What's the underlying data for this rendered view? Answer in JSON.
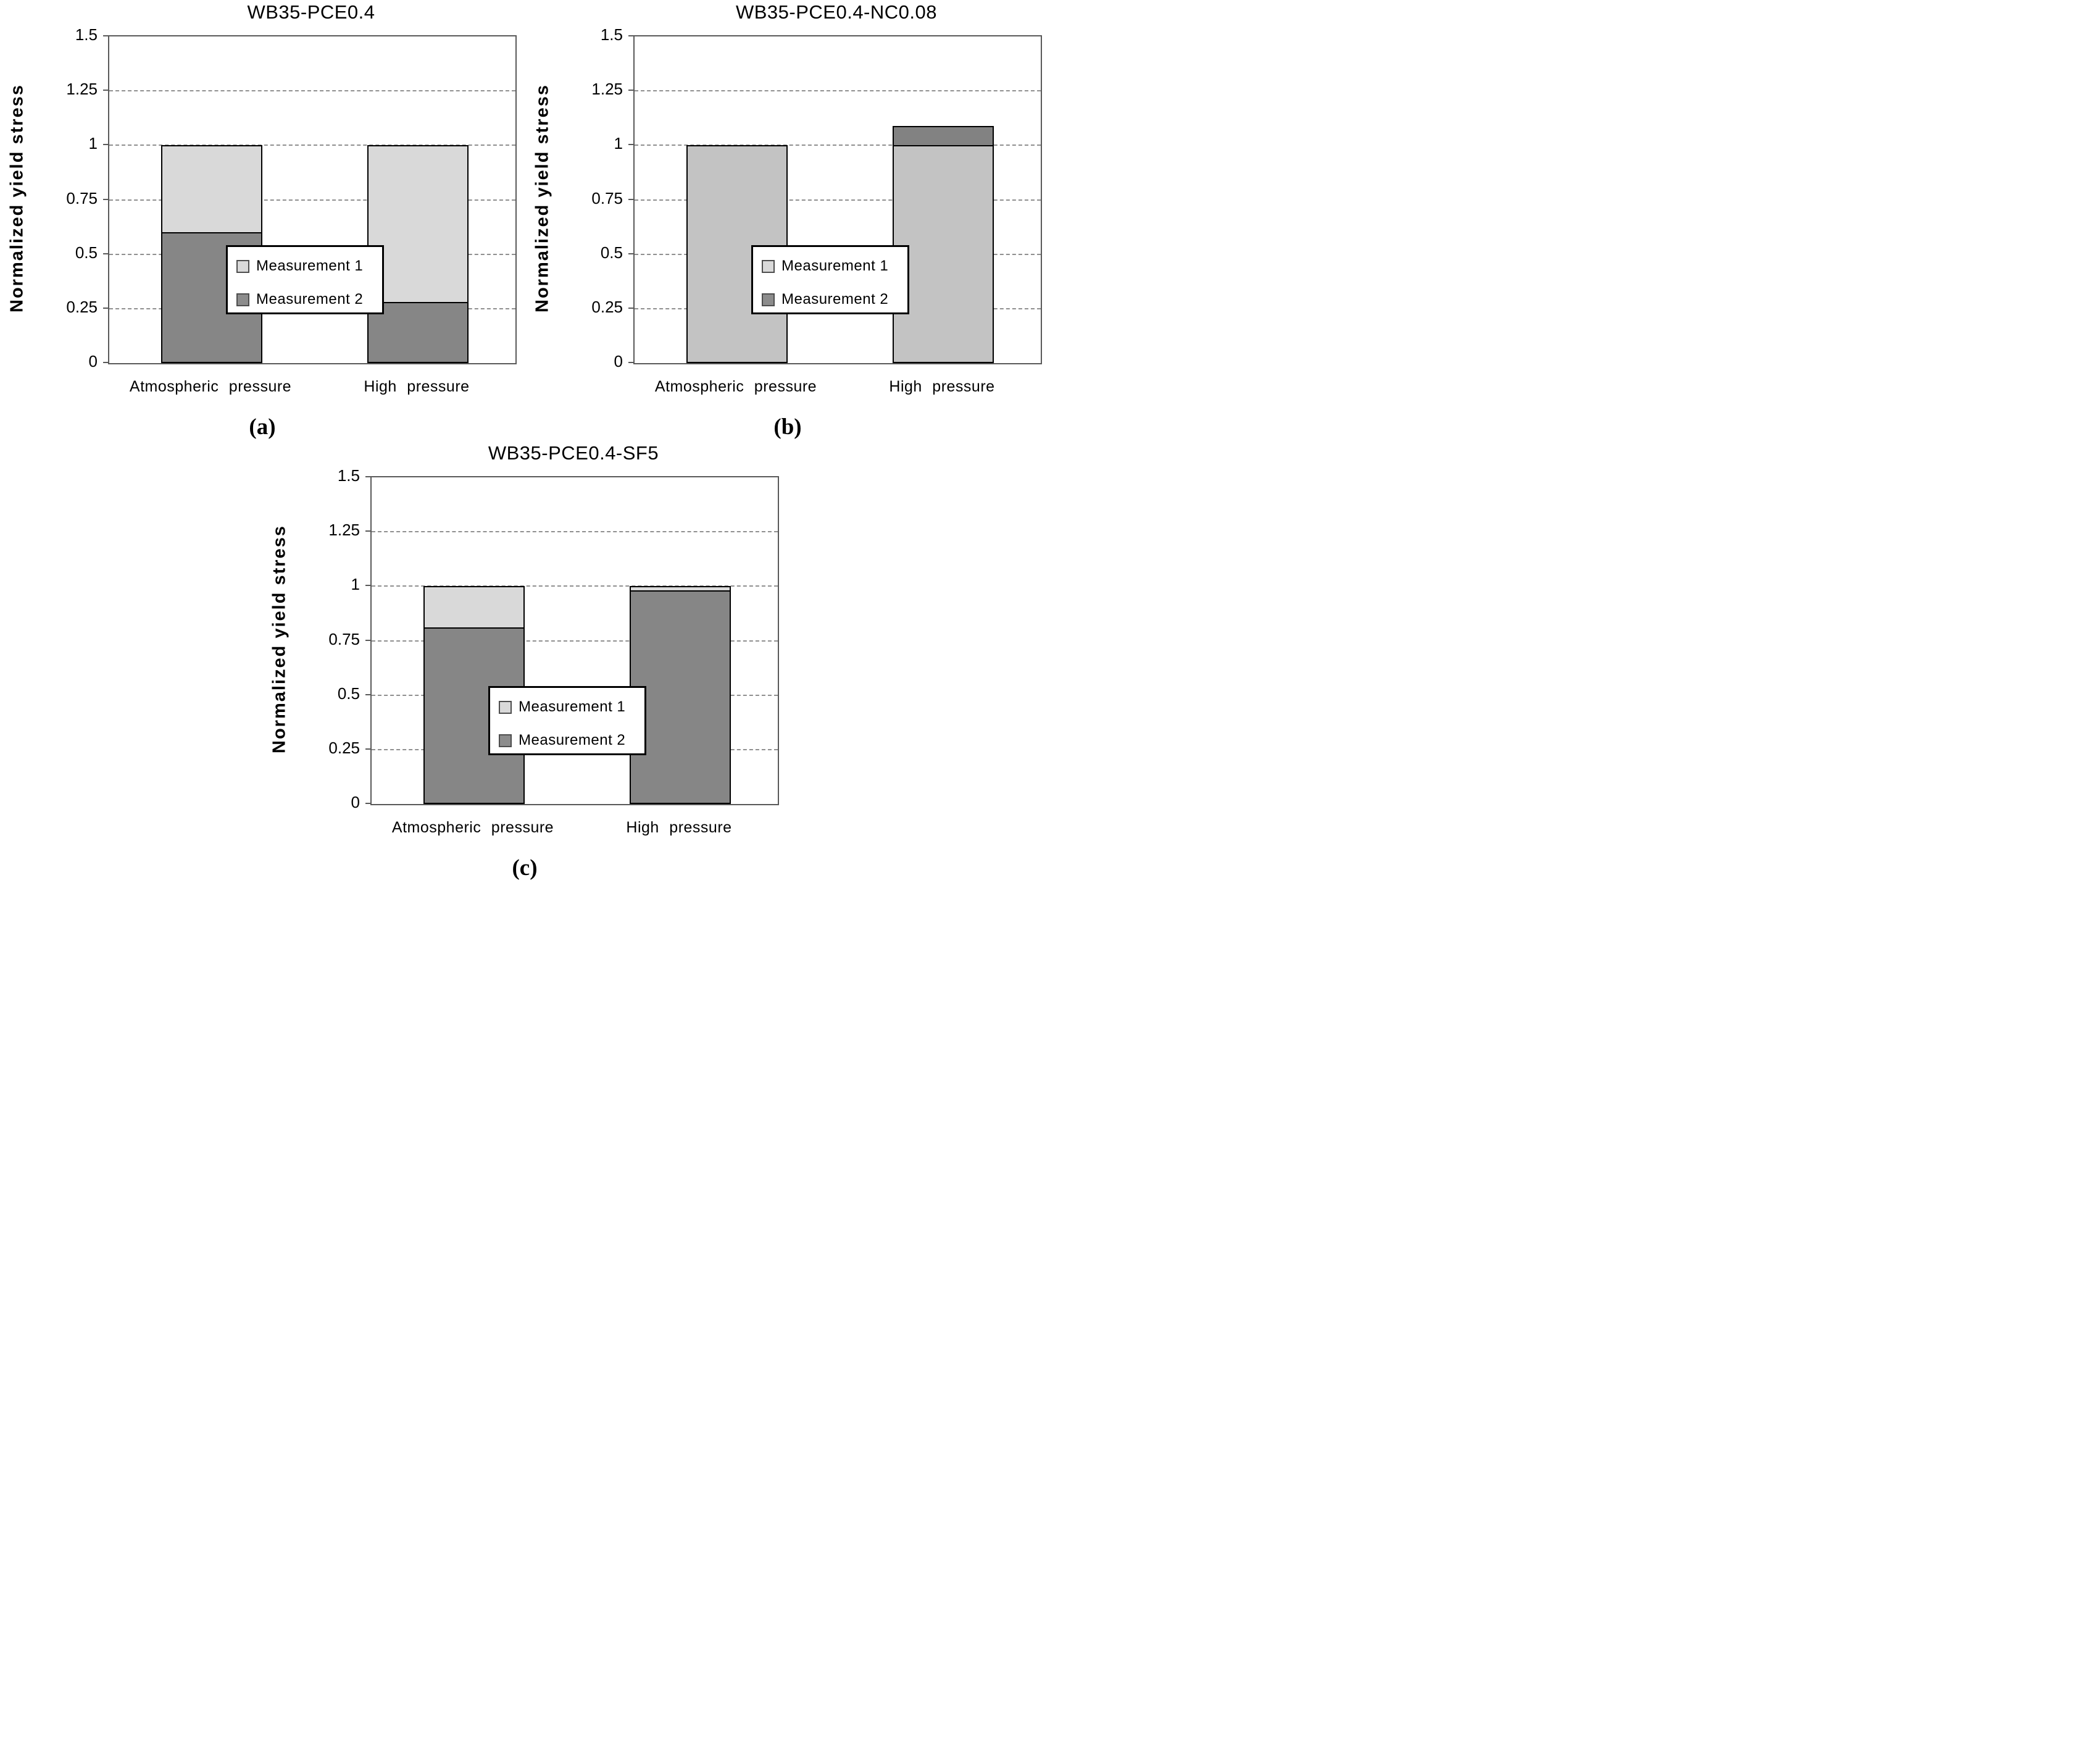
{
  "figure": {
    "background": "#ffffff",
    "style": {
      "plot_border_color": "#595959",
      "gridline_color": "#8f8f8f",
      "bar_border_color": "#000000",
      "legend_border_color": "#000000",
      "legend_background": "#ffffff",
      "text_color": "#000000"
    }
  },
  "chart_data": [
    {
      "panel": "(a)",
      "type": "bar",
      "bar_mode": "overlapped",
      "title": "WB35-PCE0.4",
      "ylabel": "Normalized yield stress",
      "xlabel": "",
      "ylim": [
        0,
        1.5
      ],
      "yticks": [
        0,
        0.25,
        0.5,
        0.75,
        1,
        1.25,
        1.5
      ],
      "ytick_labels": [
        "0",
        "0.25",
        "0.5",
        "0.75",
        "1",
        "1.25",
        "1.5"
      ],
      "grid": "horizontal-dashed",
      "legend_position": "inside-lower-center",
      "categories": [
        "Atmospheric pressure",
        "High pressure"
      ],
      "series": [
        {
          "name": "Measurement 1",
          "values": [
            1.0,
            1.0
          ],
          "color": "#d9d9d9",
          "swatch_color": "#d9d9d9"
        },
        {
          "name": "Measurement 2",
          "values": [
            0.6,
            0.28
          ],
          "color": "#868686",
          "swatch_color": "#8c8c8c"
        }
      ]
    },
    {
      "panel": "(b)",
      "type": "bar",
      "bar_mode": "overlapped",
      "title": "WB35-PCE0.4-NC0.08",
      "ylabel": "Normalized yield stress",
      "xlabel": "",
      "ylim": [
        0,
        1.5
      ],
      "yticks": [
        0,
        0.25,
        0.5,
        0.75,
        1,
        1.25,
        1.5
      ],
      "ytick_labels": [
        "0",
        "0.25",
        "0.5",
        "0.75",
        "1",
        "1.25",
        "1.5"
      ],
      "grid": "horizontal-dashed",
      "legend_position": "inside-lower-center",
      "categories": [
        "Atmospheric pressure",
        "High pressure"
      ],
      "series": [
        {
          "name": "Measurement 1",
          "values": [
            1.0,
            1.0
          ],
          "color": "#c3c3c3",
          "swatch_color": "#d9d9d9"
        },
        {
          "name": "Measurement 2",
          "values": [
            1.0,
            1.09
          ],
          "color": "#828282",
          "swatch_color": "#8c8c8c"
        }
      ]
    },
    {
      "panel": "(c)",
      "type": "bar",
      "bar_mode": "overlapped",
      "title": "WB35-PCE0.4-SF5",
      "ylabel": "Normalized yield stress",
      "xlabel": "",
      "ylim": [
        0,
        1.5
      ],
      "yticks": [
        0,
        0.25,
        0.5,
        0.75,
        1,
        1.25,
        1.5
      ],
      "ytick_labels": [
        "0",
        "0.25",
        "0.5",
        "0.75",
        "1",
        "1.25",
        "1.5"
      ],
      "grid": "horizontal-dashed",
      "legend_position": "inside-lower-center",
      "categories": [
        "Atmospheric pressure",
        "High pressure"
      ],
      "series": [
        {
          "name": "Measurement 1",
          "values": [
            1.0,
            1.0
          ],
          "color": "#d9d9d9",
          "swatch_color": "#d9d9d9"
        },
        {
          "name": "Measurement 2",
          "values": [
            0.81,
            0.98
          ],
          "color": "#868686",
          "swatch_color": "#8c8c8c"
        }
      ]
    }
  ]
}
